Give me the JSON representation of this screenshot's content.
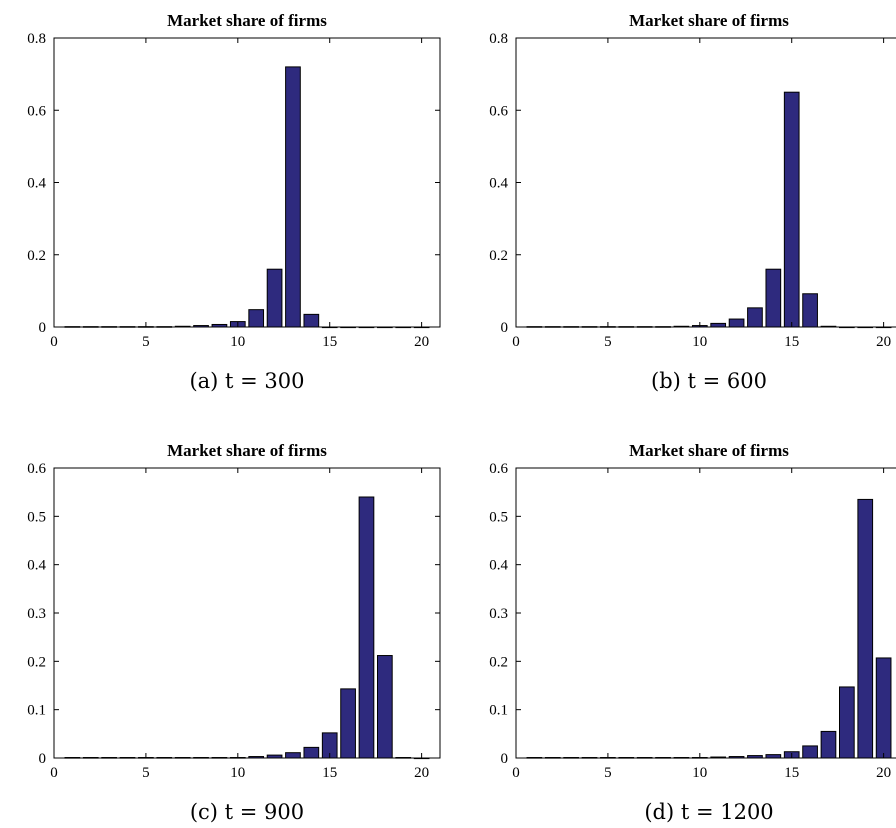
{
  "colors": {
    "bar_fill": "#2e2a7e",
    "axis": "#000000",
    "background": "#ffffff"
  },
  "chart_data": [
    {
      "type": "bar",
      "title": "Market share of firms",
      "caption": "(a) t = 300",
      "x": [
        1,
        2,
        3,
        4,
        5,
        6,
        7,
        8,
        9,
        10,
        11,
        12,
        13,
        14,
        15,
        16,
        17,
        18,
        19,
        20
      ],
      "values": [
        0.001,
        0.001,
        0.001,
        0.001,
        0.001,
        0.001,
        0.002,
        0.004,
        0.007,
        0.015,
        0.048,
        0.16,
        0.72,
        0.035,
        0,
        0,
        0,
        0,
        0,
        0
      ],
      "xlim": [
        0,
        21
      ],
      "ylim": [
        0,
        0.8
      ],
      "xticks": [
        0,
        5,
        10,
        15,
        20
      ],
      "yticks": [
        0,
        0.2,
        0.4,
        0.6,
        0.8
      ],
      "yticklabels": [
        "0",
        "0.2",
        "0.4",
        "0.6",
        "0.8"
      ],
      "grid": false
    },
    {
      "type": "bar",
      "title": "Market share of firms",
      "caption": "(b) t = 600",
      "x": [
        1,
        2,
        3,
        4,
        5,
        6,
        7,
        8,
        9,
        10,
        11,
        12,
        13,
        14,
        15,
        16,
        17,
        18,
        19,
        20
      ],
      "values": [
        0.001,
        0.001,
        0.001,
        0.001,
        0.001,
        0.001,
        0.001,
        0.001,
        0.002,
        0.004,
        0.01,
        0.022,
        0.053,
        0.16,
        0.65,
        0.092,
        0.002,
        0,
        0,
        0
      ],
      "xlim": [
        0,
        21
      ],
      "ylim": [
        0,
        0.8
      ],
      "xticks": [
        0,
        5,
        10,
        15,
        20
      ],
      "yticks": [
        0,
        0.2,
        0.4,
        0.6,
        0.8
      ],
      "yticklabels": [
        "0",
        "0.2",
        "0.4",
        "0.6",
        "0.8"
      ],
      "grid": false
    },
    {
      "type": "bar",
      "title": "Market share of firms",
      "caption": "(c) t = 900",
      "x": [
        1,
        2,
        3,
        4,
        5,
        6,
        7,
        8,
        9,
        10,
        11,
        12,
        13,
        14,
        15,
        16,
        17,
        18,
        19,
        20
      ],
      "values": [
        0.001,
        0.001,
        0.001,
        0.001,
        0.001,
        0.001,
        0.001,
        0.001,
        0.001,
        0.001,
        0.003,
        0.006,
        0.011,
        0.022,
        0.052,
        0.143,
        0.54,
        0.212,
        0.001,
        0
      ],
      "xlim": [
        0,
        21
      ],
      "ylim": [
        0,
        0.6
      ],
      "xticks": [
        0,
        5,
        10,
        15,
        20
      ],
      "yticks": [
        0,
        0.1,
        0.2,
        0.3,
        0.4,
        0.5,
        0.6
      ],
      "yticklabels": [
        "0",
        "0.1",
        "0.2",
        "0.3",
        "0.4",
        "0.5",
        "0.6"
      ],
      "grid": false
    },
    {
      "type": "bar",
      "title": "Market share of firms",
      "caption": "(d) t = 1200",
      "x": [
        1,
        2,
        3,
        4,
        5,
        6,
        7,
        8,
        9,
        10,
        11,
        12,
        13,
        14,
        15,
        16,
        17,
        18,
        19,
        20
      ],
      "values": [
        0.001,
        0.001,
        0.001,
        0.001,
        0.001,
        0.001,
        0.001,
        0.001,
        0.001,
        0.001,
        0.002,
        0.003,
        0.005,
        0.007,
        0.013,
        0.025,
        0.055,
        0.147,
        0.535,
        0.207
      ],
      "xlim": [
        0,
        21
      ],
      "ylim": [
        0,
        0.6
      ],
      "xticks": [
        0,
        5,
        10,
        15,
        20
      ],
      "yticks": [
        0,
        0.1,
        0.2,
        0.3,
        0.4,
        0.5,
        0.6
      ],
      "yticklabels": [
        "0",
        "0.1",
        "0.2",
        "0.3",
        "0.4",
        "0.5",
        "0.6"
      ],
      "grid": false
    }
  ]
}
